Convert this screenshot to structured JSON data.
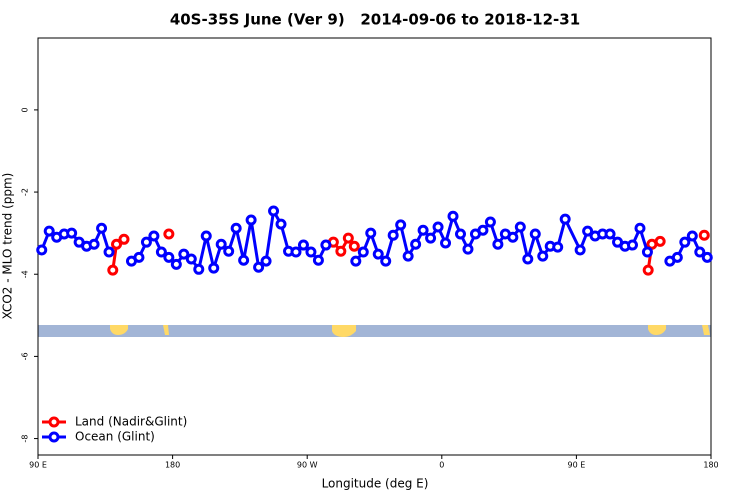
{
  "chart_data": {
    "type": "line",
    "title": "40S-35S June (Ver 9)   2014-09-06 to 2018-12-31",
    "xlabel": "Longitude (deg E)",
    "ylabel": "XCO2 - MLO trend (ppm)",
    "xlim": [
      90,
      540
    ],
    "ylim": [
      -8.4,
      1.75
    ],
    "xticks": [
      {
        "value": 90,
        "label": "90 E"
      },
      180,
      {
        "value": 270,
        "label": "90 W"
      },
      {
        "value": 360,
        "label": "0"
      },
      {
        "value": 450,
        "label": "90 E"
      },
      {
        "value": 540,
        "label": "180"
      }
    ],
    "yticks": [
      0,
      -2,
      -4,
      -6,
      -8
    ],
    "legend": "bottom-left",
    "series": [
      {
        "name": "Land (Nadir&Glint)",
        "color": "#ff0000",
        "x": [
          140,
          142.5,
          147.5,
          null,
          177.5,
          null,
          287.5,
          292.5,
          297.5,
          301.5,
          null,
          498,
          500.5,
          506,
          null,
          535.5
        ],
        "values": [
          -3.9,
          -3.27,
          -3.15,
          null,
          -3.02,
          null,
          -3.22,
          -3.44,
          -3.12,
          -3.32,
          null,
          -3.9,
          -3.27,
          -3.2,
          null,
          -3.05
        ]
      },
      {
        "name": "Ocean (Glint)",
        "color": "#0000ff",
        "x": [
          92.5,
          97.5,
          102.5,
          107.5,
          112.5,
          117.5,
          122.5,
          127.5,
          132.5,
          137.5,
          null,
          152.5,
          157.5,
          162.5,
          167.5,
          172.5,
          177.5,
          182.5,
          187.5,
          192.5,
          197.5,
          202.5,
          207.5,
          212.5,
          217.5,
          222.5,
          227.5,
          232.5,
          237.5,
          242.5,
          247.5,
          252.5,
          257.5,
          262.5,
          267.5,
          272.5,
          277.5,
          282.5,
          null,
          302.5,
          307.5,
          312.5,
          317.5,
          322.5,
          327.5,
          332.5,
          337.5,
          342.5,
          347.5,
          352.5,
          357.5,
          362.5,
          367.5,
          372.5,
          377.5,
          382.5,
          387.5,
          392.5,
          397.5,
          402.5,
          407.5,
          412.5,
          417.5,
          422.5,
          427.5,
          432.5,
          437.5,
          442.5,
          452.5,
          457.5,
          462.5,
          467.5,
          472.5,
          477.5,
          482.5,
          487.5,
          492.5,
          497.5,
          null,
          512.5,
          517.5,
          522.5,
          527.5,
          532.5,
          537.5
        ],
        "values": [
          -3.41,
          -2.95,
          -3.1,
          -3.02,
          -3.0,
          -3.22,
          -3.32,
          -3.27,
          -2.88,
          -3.46,
          null,
          -3.68,
          -3.59,
          -3.22,
          -3.07,
          -3.46,
          -3.59,
          -3.76,
          -3.51,
          -3.63,
          -3.88,
          -3.07,
          -3.85,
          -3.27,
          -3.44,
          -2.88,
          -3.66,
          -2.68,
          -3.83,
          -3.68,
          -2.46,
          -2.78,
          -3.44,
          -3.46,
          -3.29,
          -3.46,
          -3.66,
          -3.29,
          null,
          -3.68,
          -3.46,
          -3.0,
          -3.51,
          -3.68,
          -3.05,
          -2.8,
          -3.56,
          -3.27,
          -2.93,
          -3.12,
          -2.85,
          -3.24,
          -2.59,
          -3.02,
          -3.39,
          -3.02,
          -2.93,
          -2.73,
          -3.27,
          -3.02,
          -3.1,
          -2.85,
          -3.63,
          -3.02,
          -3.56,
          -3.32,
          -3.34,
          -2.66,
          -3.41,
          -2.95,
          -3.07,
          -3.02,
          -3.02,
          -3.22,
          -3.32,
          -3.29,
          -2.88,
          -3.46,
          null,
          -3.68,
          -3.59,
          -3.22,
          -3.07,
          -3.46,
          -3.59
        ]
      }
    ]
  }
}
